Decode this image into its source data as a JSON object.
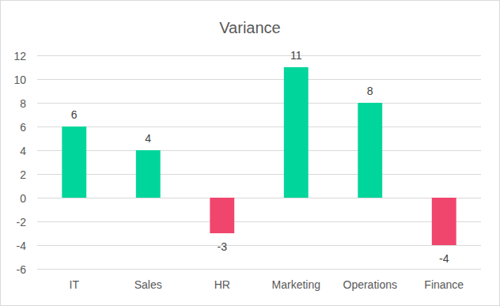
{
  "chart_data": {
    "type": "bar",
    "title": "Variance",
    "categories": [
      "IT",
      "Sales",
      "HR",
      "Marketing",
      "Operations",
      "Finance"
    ],
    "values": [
      6,
      4,
      -3,
      11,
      8,
      -4
    ],
    "colors": [
      "#00d59b",
      "#00d59b",
      "#f0466e",
      "#00d59b",
      "#00d59b",
      "#f0466e"
    ],
    "ylim": [
      -6,
      12
    ],
    "yticks": [
      -6,
      -4,
      -2,
      0,
      2,
      4,
      6,
      8,
      10,
      12
    ],
    "grid": true,
    "data_labels": true
  }
}
